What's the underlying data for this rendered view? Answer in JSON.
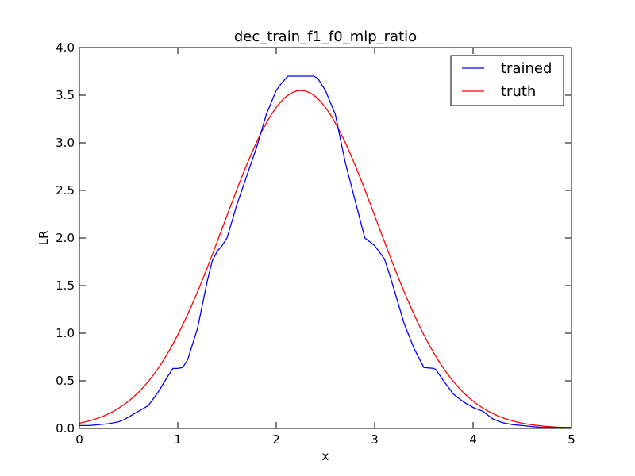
{
  "chart_data": {
    "type": "line",
    "title": "dec_train_f1_f0_mlp_ratio",
    "xlabel": "x",
    "ylabel": "LR",
    "xlim": [
      0,
      5
    ],
    "ylim": [
      0,
      4
    ],
    "xticks": [
      0,
      1,
      2,
      3,
      4,
      5
    ],
    "yticks": [
      0.0,
      0.5,
      1.0,
      1.5,
      2.0,
      2.5,
      3.0,
      3.5,
      4.0
    ],
    "xtick_labels": [
      "0",
      "1",
      "2",
      "3",
      "4",
      "5"
    ],
    "ytick_labels": [
      "0.0",
      "0.5",
      "1.0",
      "1.5",
      "2.0",
      "2.5",
      "3.0",
      "3.5",
      "4.0"
    ],
    "grid": false,
    "legend_position": "top-right",
    "series": [
      {
        "name": "trained",
        "color": "#0000ff",
        "x": [
          0,
          0.1,
          0.2,
          0.3,
          0.4,
          0.45,
          0.5,
          0.6,
          0.7,
          0.8,
          0.9,
          0.95,
          1.0,
          1.05,
          1.1,
          1.2,
          1.3,
          1.35,
          1.4,
          1.45,
          1.5,
          1.6,
          1.7,
          1.8,
          1.9,
          2.0,
          2.05,
          2.1,
          2.12,
          2.2,
          2.3,
          2.38,
          2.42,
          2.5,
          2.6,
          2.7,
          2.8,
          2.9,
          3.0,
          3.1,
          3.15,
          3.2,
          3.3,
          3.4,
          3.5,
          3.6,
          3.62,
          3.7,
          3.8,
          3.9,
          4.0,
          4.1,
          4.2,
          4.3,
          4.4,
          4.5,
          4.6,
          4.7,
          4.8,
          4.9,
          5.0
        ],
        "y": [
          0.03,
          0.03,
          0.04,
          0.05,
          0.07,
          0.09,
          0.12,
          0.18,
          0.24,
          0.38,
          0.55,
          0.63,
          0.63,
          0.64,
          0.72,
          1.05,
          1.55,
          1.76,
          1.86,
          1.92,
          2.0,
          2.35,
          2.65,
          2.95,
          3.3,
          3.55,
          3.62,
          3.68,
          3.7,
          3.7,
          3.7,
          3.7,
          3.68,
          3.55,
          3.3,
          2.8,
          2.4,
          2.0,
          1.92,
          1.78,
          1.62,
          1.45,
          1.1,
          0.84,
          0.64,
          0.63,
          0.62,
          0.5,
          0.36,
          0.28,
          0.22,
          0.18,
          0.1,
          0.06,
          0.04,
          0.03,
          0.02,
          0.01,
          0.01,
          0.01,
          0.01
        ]
      },
      {
        "name": "truth",
        "color": "#ff0000",
        "mean": 2.25,
        "sigma": 0.78,
        "peak": 3.55,
        "x_step": 0.05
      }
    ]
  }
}
